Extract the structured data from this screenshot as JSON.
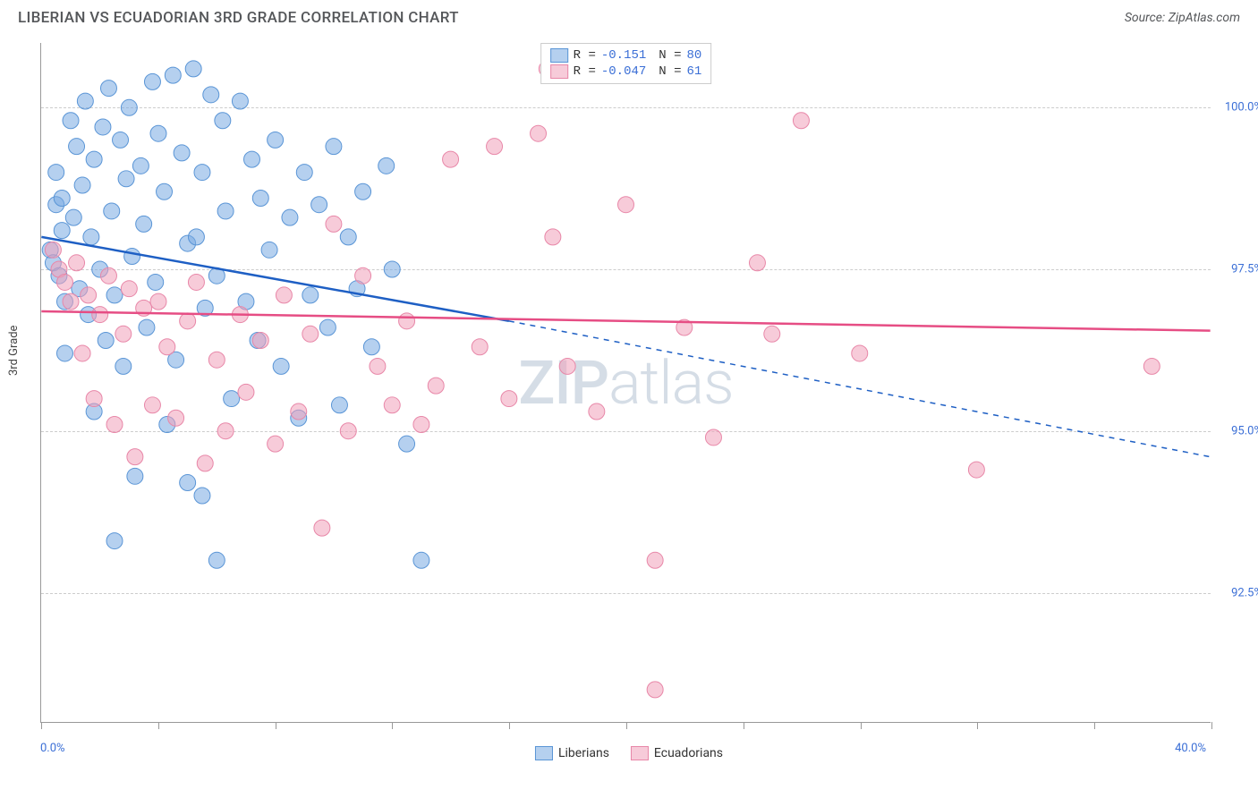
{
  "title": "LIBERIAN VS ECUADORIAN 3RD GRADE CORRELATION CHART",
  "source": "Source: ZipAtlas.com",
  "ylabel": "3rd Grade",
  "watermark": {
    "part1": "ZIP",
    "part2": "atlas"
  },
  "chart": {
    "type": "scatter",
    "xlim": [
      0,
      40
    ],
    "ylim": [
      90.5,
      101
    ],
    "x_ticks": [
      0,
      4,
      8,
      12,
      16,
      20,
      24,
      28,
      32,
      36,
      40
    ],
    "y_gridlines": [
      92.5,
      95.0,
      97.5,
      100.0
    ],
    "y_tick_labels": [
      "92.5%",
      "95.0%",
      "97.5%",
      "100.0%"
    ],
    "x_min_label": "0.0%",
    "x_max_label": "40.0%",
    "background_color": "#ffffff",
    "grid_color": "#cccccc",
    "axis_color": "#999999",
    "tick_label_color": "#3b6fd6",
    "marker_radius": 9,
    "marker_opacity": 0.55,
    "line_width_solid": 2.5,
    "line_width_dash": 1.5
  },
  "legend_top": [
    {
      "swatch": "blue",
      "r_label": "R =",
      "r_val": "-0.151",
      "n_label": "N =",
      "n_val": "80"
    },
    {
      "swatch": "pink",
      "r_label": "R =",
      "r_val": "-0.047",
      "n_label": "N =",
      "n_val": "61"
    }
  ],
  "legend_bottom": [
    {
      "swatch": "blue",
      "label": "Liberians"
    },
    {
      "swatch": "pink",
      "label": "Ecuadorians"
    }
  ],
  "series": [
    {
      "name": "Liberians",
      "color_fill": "rgba(120,170,225,0.55)",
      "color_stroke": "#5a95d6",
      "trend_color": "#1e5fc4",
      "trend_start": [
        0,
        98.0
      ],
      "trend_solid_end": [
        16,
        96.7
      ],
      "trend_dash_end": [
        40,
        94.6
      ],
      "points": [
        [
          0.3,
          97.8
        ],
        [
          0.4,
          97.6
        ],
        [
          0.5,
          98.5
        ],
        [
          0.5,
          99.0
        ],
        [
          0.6,
          97.4
        ],
        [
          0.7,
          98.1
        ],
        [
          0.7,
          98.6
        ],
        [
          0.8,
          97.0
        ],
        [
          0.8,
          96.2
        ],
        [
          1.0,
          99.8
        ],
        [
          1.1,
          98.3
        ],
        [
          1.2,
          99.4
        ],
        [
          1.3,
          97.2
        ],
        [
          1.4,
          98.8
        ],
        [
          1.5,
          100.1
        ],
        [
          1.6,
          96.8
        ],
        [
          1.7,
          98.0
        ],
        [
          1.8,
          99.2
        ],
        [
          1.8,
          95.3
        ],
        [
          2.0,
          97.5
        ],
        [
          2.1,
          99.7
        ],
        [
          2.2,
          96.4
        ],
        [
          2.3,
          100.3
        ],
        [
          2.4,
          98.4
        ],
        [
          2.5,
          97.1
        ],
        [
          2.5,
          93.3
        ],
        [
          2.7,
          99.5
        ],
        [
          2.8,
          96.0
        ],
        [
          2.9,
          98.9
        ],
        [
          3.0,
          100.0
        ],
        [
          3.1,
          97.7
        ],
        [
          3.2,
          94.3
        ],
        [
          3.4,
          99.1
        ],
        [
          3.5,
          98.2
        ],
        [
          3.6,
          96.6
        ],
        [
          3.8,
          100.4
        ],
        [
          3.9,
          97.3
        ],
        [
          4.0,
          99.6
        ],
        [
          4.2,
          98.7
        ],
        [
          4.3,
          95.1
        ],
        [
          4.5,
          100.5
        ],
        [
          4.6,
          96.1
        ],
        [
          4.8,
          99.3
        ],
        [
          5.0,
          97.9
        ],
        [
          5.0,
          94.2
        ],
        [
          5.2,
          100.6
        ],
        [
          5.3,
          98.0
        ],
        [
          5.5,
          99.0
        ],
        [
          5.5,
          94.0
        ],
        [
          5.6,
          96.9
        ],
        [
          5.8,
          100.2
        ],
        [
          6.0,
          97.4
        ],
        [
          6.0,
          93.0
        ],
        [
          6.2,
          99.8
        ],
        [
          6.3,
          98.4
        ],
        [
          6.5,
          95.5
        ],
        [
          6.8,
          100.1
        ],
        [
          7.0,
          97.0
        ],
        [
          7.2,
          99.2
        ],
        [
          7.4,
          96.4
        ],
        [
          7.5,
          98.6
        ],
        [
          7.8,
          97.8
        ],
        [
          8.0,
          99.5
        ],
        [
          8.2,
          96.0
        ],
        [
          8.5,
          98.3
        ],
        [
          8.8,
          95.2
        ],
        [
          9.0,
          99.0
        ],
        [
          9.2,
          97.1
        ],
        [
          9.5,
          98.5
        ],
        [
          9.8,
          96.6
        ],
        [
          10.0,
          99.4
        ],
        [
          10.2,
          95.4
        ],
        [
          10.5,
          98.0
        ],
        [
          10.8,
          97.2
        ],
        [
          11.0,
          98.7
        ],
        [
          11.3,
          96.3
        ],
        [
          11.8,
          99.1
        ],
        [
          12.0,
          97.5
        ],
        [
          12.5,
          94.8
        ],
        [
          13.0,
          93.0
        ]
      ]
    },
    {
      "name": "Ecuadorians",
      "color_fill": "rgba(240,160,185,0.55)",
      "color_stroke": "#e887a8",
      "trend_color": "#e64d84",
      "trend_start": [
        0,
        96.85
      ],
      "trend_solid_end": [
        40,
        96.55
      ],
      "trend_dash_end": null,
      "points": [
        [
          0.4,
          97.8
        ],
        [
          0.6,
          97.5
        ],
        [
          0.8,
          97.3
        ],
        [
          1.0,
          97.0
        ],
        [
          1.2,
          97.6
        ],
        [
          1.4,
          96.2
        ],
        [
          1.6,
          97.1
        ],
        [
          1.8,
          95.5
        ],
        [
          2.0,
          96.8
        ],
        [
          2.3,
          97.4
        ],
        [
          2.5,
          95.1
        ],
        [
          2.8,
          96.5
        ],
        [
          3.0,
          97.2
        ],
        [
          3.2,
          94.6
        ],
        [
          3.5,
          96.9
        ],
        [
          3.8,
          95.4
        ],
        [
          4.0,
          97.0
        ],
        [
          4.3,
          96.3
        ],
        [
          4.6,
          95.2
        ],
        [
          5.0,
          96.7
        ],
        [
          5.3,
          97.3
        ],
        [
          5.6,
          94.5
        ],
        [
          6.0,
          96.1
        ],
        [
          6.3,
          95.0
        ],
        [
          6.8,
          96.8
        ],
        [
          7.0,
          95.6
        ],
        [
          7.5,
          96.4
        ],
        [
          8.0,
          94.8
        ],
        [
          8.3,
          97.1
        ],
        [
          8.8,
          95.3
        ],
        [
          9.2,
          96.5
        ],
        [
          9.6,
          93.5
        ],
        [
          10.0,
          98.2
        ],
        [
          10.5,
          95.0
        ],
        [
          11.0,
          97.4
        ],
        [
          11.5,
          96.0
        ],
        [
          12.0,
          95.4
        ],
        [
          12.5,
          96.7
        ],
        [
          13.0,
          95.1
        ],
        [
          13.5,
          95.7
        ],
        [
          14.0,
          99.2
        ],
        [
          15.0,
          96.3
        ],
        [
          15.5,
          99.4
        ],
        [
          16.0,
          95.5
        ],
        [
          17.0,
          99.6
        ],
        [
          17.3,
          100.6
        ],
        [
          17.5,
          98.0
        ],
        [
          18.0,
          96.0
        ],
        [
          19.0,
          95.3
        ],
        [
          20.0,
          98.5
        ],
        [
          21.0,
          93.0
        ],
        [
          21.0,
          91.0
        ],
        [
          21.2,
          100.6
        ],
        [
          22.0,
          96.6
        ],
        [
          23.0,
          94.9
        ],
        [
          24.5,
          97.6
        ],
        [
          25.0,
          96.5
        ],
        [
          26.0,
          99.8
        ],
        [
          28.0,
          96.2
        ],
        [
          32.0,
          94.4
        ],
        [
          38.0,
          96.0
        ]
      ]
    }
  ]
}
